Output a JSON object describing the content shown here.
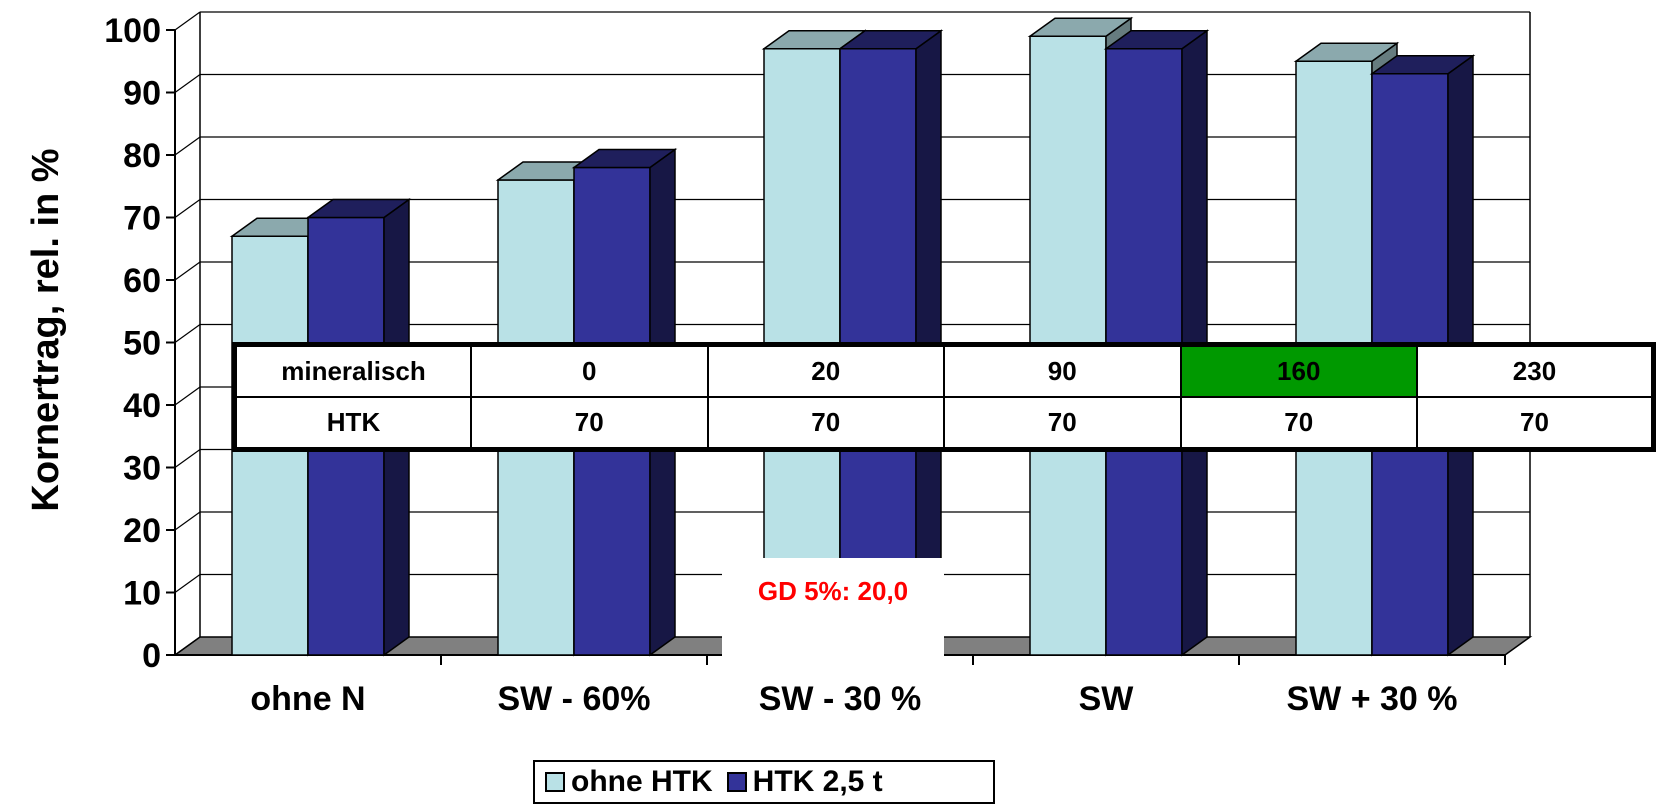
{
  "chart_data": {
    "type": "bar",
    "ylabel": "Kornertrag, rel. in %",
    "ylim": [
      0,
      100
    ],
    "yticks": [
      "0",
      "10",
      "20",
      "30",
      "40",
      "50",
      "60",
      "70",
      "80",
      "90",
      "100"
    ],
    "categories": [
      "ohne N",
      "SW - 60%",
      "SW - 30 %",
      "SW",
      "SW + 30 %"
    ],
    "series": [
      {
        "name": "ohne HTK",
        "values": [
          67,
          76,
          97,
          99,
          95
        ],
        "color": "#b9e1e6"
      },
      {
        "name": "HTK 2,5 t",
        "values": [
          70,
          78,
          97,
          97,
          93
        ],
        "color": "#333399"
      }
    ],
    "grid": true,
    "legend_position": "bottom-center",
    "annotation": "GD 5%: 20,0",
    "table": {
      "rows": [
        {
          "label": "mineralisch",
          "values": [
            "0",
            "20",
            "90",
            "160",
            "230"
          ]
        },
        {
          "label": "HTK",
          "values": [
            "70",
            "70",
            "70",
            "70",
            "70"
          ]
        }
      ],
      "highlight_color": "#009900"
    }
  }
}
